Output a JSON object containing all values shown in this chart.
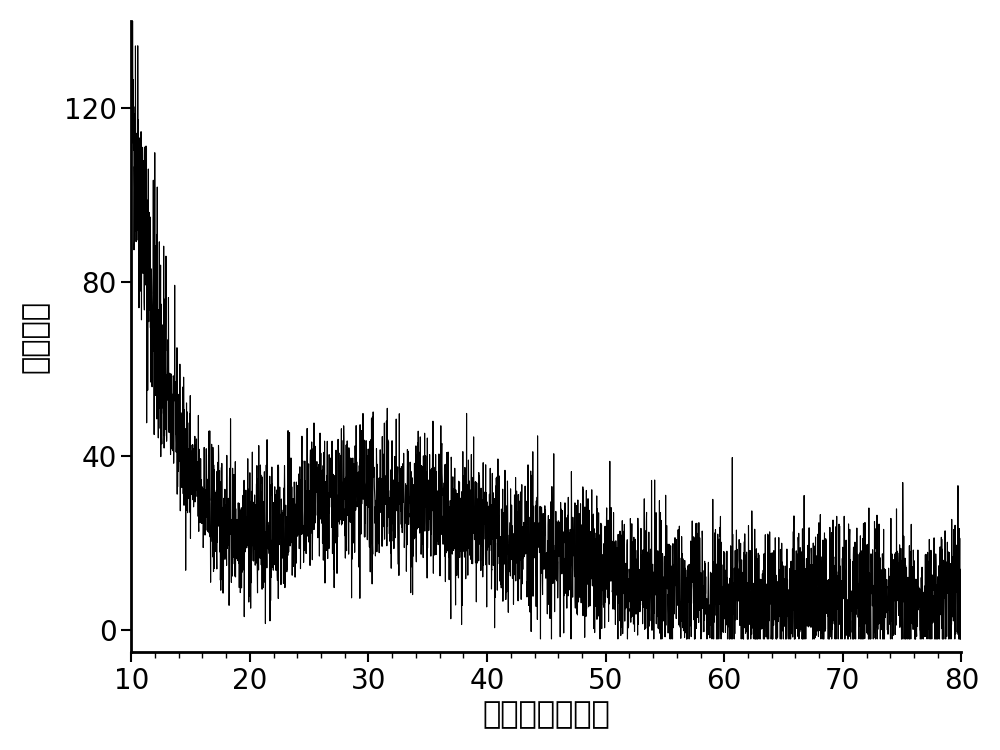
{
  "xlabel": "衍射角度（度）",
  "ylabel": "衍射强度",
  "xlim": [
    10,
    80
  ],
  "ylim": [
    -5,
    140
  ],
  "xticks": [
    10,
    20,
    30,
    40,
    50,
    60,
    70,
    80
  ],
  "yticks": [
    0,
    40,
    80,
    120
  ],
  "line_color": "#000000",
  "background_color": "#ffffff",
  "xlabel_fontsize": 22,
  "ylabel_fontsize": 22,
  "tick_fontsize": 20,
  "line_width": 0.8,
  "seed": 42
}
